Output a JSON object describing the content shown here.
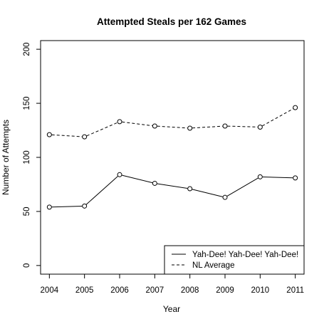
{
  "chart_data": {
    "type": "line",
    "title": "Attempted Steals per 162 Games",
    "xlabel": "Year",
    "ylabel": "Number of Attempts",
    "x": [
      2004,
      2005,
      2006,
      2007,
      2008,
      2009,
      2010,
      2011
    ],
    "xlim": [
      2003.75,
      2011.25
    ],
    "ylim": [
      -8,
      208
    ],
    "yticks": [
      0,
      50,
      100,
      150,
      200
    ],
    "grid": false,
    "legend_position": "bottom-right",
    "series": [
      {
        "name": "Yah-Dee! Yah-Dee! Yah-Dee!",
        "line_style": "solid",
        "marker": "open-circle",
        "color": "#000000",
        "values": [
          54,
          55,
          84,
          76,
          71,
          63,
          82,
          81
        ]
      },
      {
        "name": "NL Average",
        "line_style": "dashed",
        "marker": "open-circle",
        "color": "#000000",
        "values": [
          121,
          119,
          133,
          129,
          127,
          129,
          128,
          146
        ]
      }
    ]
  }
}
